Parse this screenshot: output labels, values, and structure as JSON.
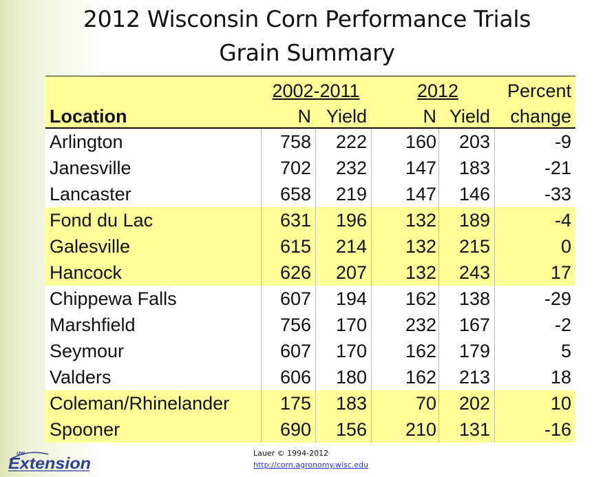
{
  "title": {
    "line1": "2012 Wisconsin Corn Performance Trials",
    "line2": "Grain Summary"
  },
  "table": {
    "header": {
      "location": "Location",
      "period1": "2002-2011",
      "period2": "2012",
      "percent_line1": "Percent",
      "percent_line2": "change",
      "n_label": "N",
      "yield_label": "Yield"
    },
    "rows": [
      {
        "location": "Arlington",
        "n1": "758",
        "y1": "222",
        "n2": "160",
        "y2": "203",
        "pct": "-9",
        "shade": "white"
      },
      {
        "location": "Janesville",
        "n1": "702",
        "y1": "232",
        "n2": "147",
        "y2": "183",
        "pct": "-21",
        "shade": "white"
      },
      {
        "location": "Lancaster",
        "n1": "658",
        "y1": "219",
        "n2": "147",
        "y2": "146",
        "pct": "-33",
        "shade": "white"
      },
      {
        "location": "Fond du Lac",
        "n1": "631",
        "y1": "196",
        "n2": "132",
        "y2": "189",
        "pct": "-4",
        "shade": "yellow"
      },
      {
        "location": "Galesville",
        "n1": "615",
        "y1": "214",
        "n2": "132",
        "y2": "215",
        "pct": "0",
        "shade": "yellow"
      },
      {
        "location": "Hancock",
        "n1": "626",
        "y1": "207",
        "n2": "132",
        "y2": "243",
        "pct": "17",
        "shade": "yellow"
      },
      {
        "location": "Chippewa Falls",
        "n1": "607",
        "y1": "194",
        "n2": "162",
        "y2": "138",
        "pct": "-29",
        "shade": "white"
      },
      {
        "location": "Marshfield",
        "n1": "756",
        "y1": "170",
        "n2": "232",
        "y2": "167",
        "pct": "-2",
        "shade": "white"
      },
      {
        "location": "Seymour",
        "n1": "607",
        "y1": "170",
        "n2": "162",
        "y2": "179",
        "pct": "5",
        "shade": "white"
      },
      {
        "location": "Valders",
        "n1": "606",
        "y1": "180",
        "n2": "162",
        "y2": "213",
        "pct": "18",
        "shade": "white"
      },
      {
        "location": "Coleman/Rhinelander",
        "n1": "175",
        "y1": "183",
        "n2": "70",
        "y2": "202",
        "pct": "10",
        "shade": "yellow"
      },
      {
        "location": "Spooner",
        "n1": "690",
        "y1": "156",
        "n2": "210",
        "y2": "131",
        "pct": "-16",
        "shade": "yellow"
      }
    ]
  },
  "footer": {
    "logo_top": "UW",
    "logo_main": "Extension",
    "credit": "Lauer © 1994-2012",
    "url": "http://corn.agronomy.wisc.edu"
  },
  "colors": {
    "highlight": "#ffff99",
    "logo_blue": "#2b3d9a",
    "link": "#2a3bd0"
  }
}
